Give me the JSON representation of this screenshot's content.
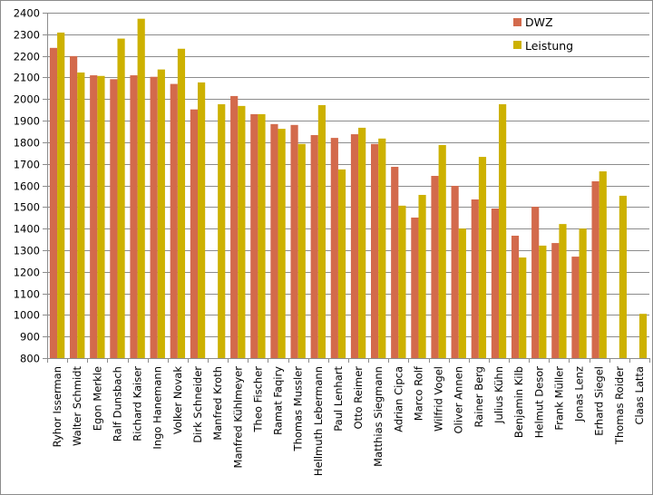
{
  "chart_data": {
    "type": "bar",
    "title": "",
    "xlabel": "",
    "ylabel": "",
    "ylim": [
      800,
      2400
    ],
    "yticks": [
      800,
      900,
      1000,
      1100,
      1200,
      1300,
      1400,
      1500,
      1600,
      1700,
      1800,
      1900,
      2000,
      2100,
      2200,
      2300,
      2400
    ],
    "grid": true,
    "legend_position": "top-right",
    "categories": [
      "Ryhor Isserman",
      "Walter Schmidt",
      "Egon Merkle",
      "Ralf Dunsbach",
      "Richard Kaiser",
      "Ingo Hanemann",
      "Volker Novak",
      "Dirk Schneider",
      "Manfred Kroth",
      "Manfred Kühlmeyer",
      "Theo Fischer",
      "Ramat Faqiry",
      "Thomas Mussler",
      "Hellmuth Lebermann",
      "Paul Lenhart",
      "Otto Reimer",
      "Matthias Siegmann",
      "Adrian Cipca",
      "Marco Rolf",
      "Wilfrid Vogel",
      "Oliver Annen",
      "Rainer Berg",
      "Julius Kühn",
      "Benjamin Kilb",
      "Helmut Desor",
      "Frank Müller",
      "Jonas Lenz",
      "Erhard Siegel",
      "Thomas Roider",
      "Claas Latta"
    ],
    "series": [
      {
        "name": "DWZ",
        "color": "#d36a4c",
        "values": [
          2237,
          2199,
          2110,
          2092,
          2110,
          2103,
          2070,
          1952,
          null,
          2014,
          1930,
          1884,
          1880,
          1833,
          1820,
          1837,
          1792,
          1686,
          1451,
          1644,
          1598,
          1535,
          1493,
          1367,
          1501,
          1333,
          1270,
          1619,
          null,
          null
        ]
      },
      {
        "name": "Leistung",
        "color": "#cdb100",
        "values": [
          2308,
          2123,
          2107,
          2280,
          2372,
          2137,
          2233,
          2077,
          1976,
          1968,
          1930,
          1862,
          1792,
          1972,
          1674,
          1867,
          1817,
          1506,
          1556,
          1787,
          1400,
          1732,
          1976,
          1266,
          1321,
          1421,
          1400,
          1665,
          1552,
          1005
        ]
      }
    ]
  }
}
